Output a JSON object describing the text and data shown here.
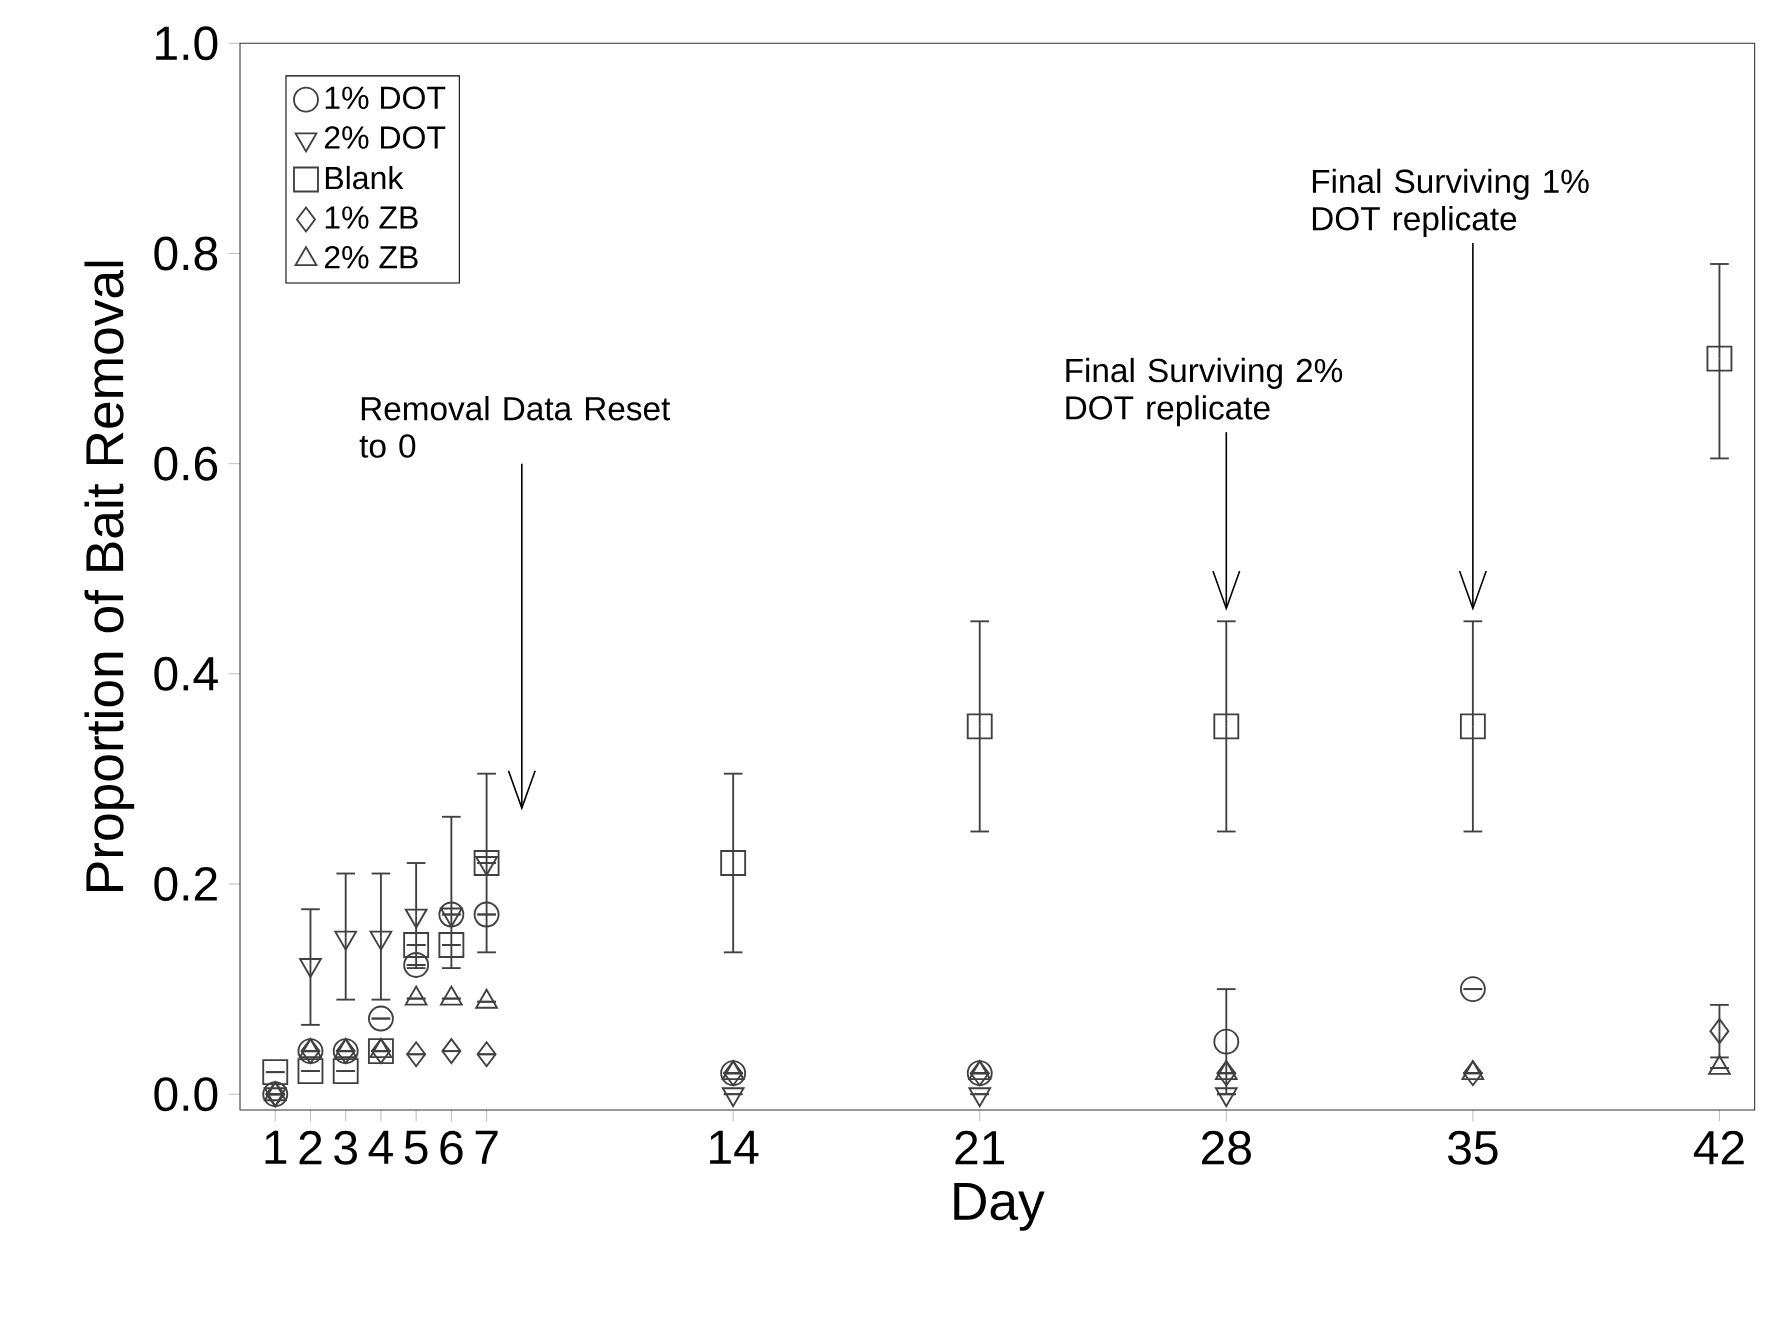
{
  "chart_data": {
    "type": "scatter",
    "xlabel": "Day",
    "ylabel": "Proportion of Bait Removal",
    "x": [
      1,
      2,
      3,
      4,
      5,
      6,
      7,
      14,
      21,
      28,
      35,
      42
    ],
    "series": [
      {
        "name": "1% DOT",
        "color": "#404040",
        "marker": "circle",
        "values": [
          0,
          0.041,
          0.041,
          0.072,
          0.123,
          0.171,
          0.171,
          0.02,
          0.02,
          0.05,
          0.1,
          null
        ],
        "errors": [
          null,
          null,
          null,
          null,
          null,
          null,
          null,
          null,
          null,
          0.05,
          null,
          null
        ]
      },
      {
        "name": "2% DOT",
        "color": "#404040",
        "marker": "triangle_down",
        "values": [
          0,
          0.123,
          0.149,
          0.149,
          0.17,
          0.171,
          0.22,
          0,
          0,
          0,
          null,
          null
        ],
        "errors": [
          null,
          [
            0.066,
            0.176
          ],
          [
            0.09,
            0.21
          ],
          [
            0.09,
            0.21
          ],
          [
            0.12,
            0.22
          ],
          [
            0.12,
            0.264
          ],
          [
            0.135,
            0.305
          ],
          null,
          null,
          null,
          null,
          null
        ]
      },
      {
        "name": "Blank",
        "color": "#404040",
        "marker": "square",
        "values": [
          0.021,
          0.022,
          0.022,
          0.041,
          0.142,
          0.142,
          0.22,
          0.22,
          0.35,
          0.35,
          0.35,
          0.7
        ],
        "errors": [
          null,
          null,
          null,
          null,
          null,
          null,
          null,
          [
            0.135,
            0.305
          ],
          [
            0.25,
            0.45
          ],
          [
            0.25,
            0.45
          ],
          [
            0.25,
            0.45
          ],
          [
            0.605,
            0.79
          ]
        ]
      },
      {
        "name": "1% ZB",
        "color": "#404040",
        "marker": "diamond",
        "values": [
          0,
          0.041,
          0.041,
          0.041,
          0.038,
          0.041,
          0.038,
          0.02,
          0.02,
          0.02,
          0.02,
          0.06
        ],
        "errors": [
          null,
          null,
          null,
          null,
          null,
          null,
          null,
          null,
          null,
          null,
          null,
          0.025
        ]
      },
      {
        "name": "2% ZB",
        "color": "#404040",
        "marker": "triangle",
        "values": [
          0,
          0.041,
          0.041,
          0.041,
          0.091,
          0.091,
          0.088,
          0.02,
          0.02,
          0.02,
          0.02,
          0.025
        ],
        "errors": [
          null,
          null,
          null,
          null,
          null,
          null,
          null,
          null,
          null,
          null,
          null,
          null
        ]
      }
    ],
    "xlim": [
      0,
      43
    ],
    "ylim": [
      -0.015,
      1.0
    ],
    "xticks": [
      1,
      2,
      3,
      4,
      5,
      6,
      7,
      14,
      21,
      28,
      35,
      42
    ],
    "yticks": [
      {
        "value": 0,
        "label": "0.0"
      },
      {
        "value": 0.2,
        "label": "0.2"
      },
      {
        "value": 0.4,
        "label": "0.4"
      },
      {
        "value": 0.6,
        "label": "0.6"
      },
      {
        "value": 0.8,
        "label": "0.8"
      },
      {
        "value": 1.0,
        "label": "1.0"
      }
    ],
    "legend": "top left",
    "grid": false,
    "annotations": [
      "Removal Data Reset to 0",
      "Final Surviving 2% DOT replicate",
      "Final Surviving 1% DOT replicate"
    ]
  }
}
